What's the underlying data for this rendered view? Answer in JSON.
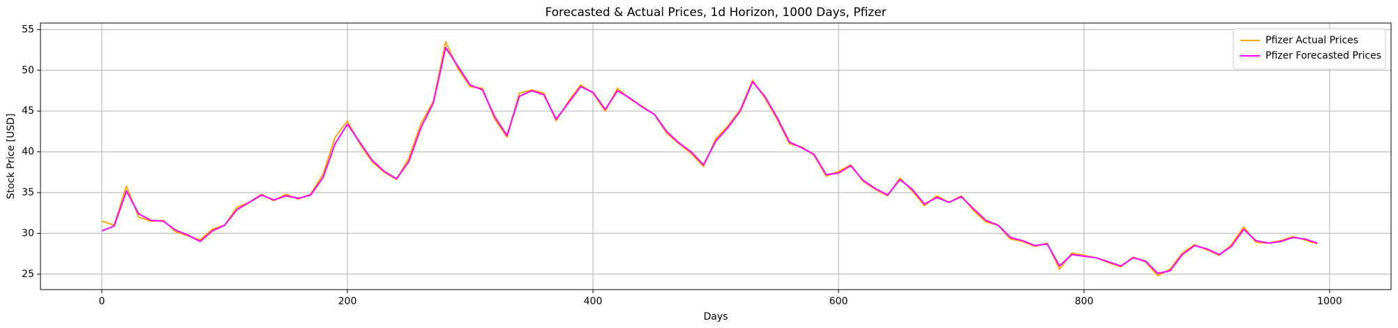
{
  "chart_data": {
    "type": "line",
    "title": "Forecasted & Actual Prices, 1d Horizon, 1000 Days, Pfizer",
    "x_label": "Days",
    "y_label": "Stock Price [USD]",
    "x": [
      0,
      10,
      20,
      30,
      40,
      50,
      60,
      70,
      80,
      90,
      100,
      110,
      120,
      130,
      140,
      150,
      160,
      170,
      180,
      190,
      200,
      210,
      220,
      230,
      240,
      250,
      260,
      270,
      280,
      290,
      300,
      310,
      320,
      330,
      340,
      350,
      360,
      370,
      380,
      390,
      400,
      410,
      420,
      430,
      440,
      450,
      460,
      470,
      480,
      490,
      500,
      510,
      520,
      530,
      540,
      550,
      560,
      570,
      580,
      590,
      600,
      610,
      620,
      630,
      640,
      650,
      660,
      670,
      680,
      690,
      700,
      710,
      720,
      730,
      740,
      750,
      760,
      770,
      780,
      790,
      800,
      810,
      820,
      830,
      840,
      850,
      860,
      870,
      880,
      890,
      900,
      910,
      920,
      930,
      940,
      950,
      960,
      970,
      980,
      990
    ],
    "series": [
      {
        "name": "Pfizer Actual Prices",
        "color": "#ffa500",
        "values": [
          31.5,
          31.0,
          35.8,
          32.0,
          31.5,
          31.6,
          30.2,
          29.7,
          29.2,
          30.5,
          31.0,
          33.2,
          33.8,
          34.8,
          34.0,
          34.8,
          34.2,
          34.8,
          37.2,
          41.8,
          43.8,
          41.0,
          38.8,
          37.5,
          36.6,
          39.2,
          43.5,
          46.2,
          53.5,
          50.2,
          48.0,
          47.8,
          44.0,
          41.8,
          47.2,
          47.6,
          47.2,
          43.8,
          46.2,
          48.2,
          47.2,
          45.0,
          47.8,
          46.5,
          45.6,
          44.6,
          42.3,
          41.0,
          39.8,
          38.2,
          41.6,
          43.2,
          45.2,
          48.8,
          46.6,
          44.0,
          41.0,
          40.6,
          39.6,
          37.0,
          37.6,
          38.4,
          36.4,
          35.4,
          34.6,
          36.8,
          35.2,
          33.4,
          34.6,
          33.8,
          34.6,
          32.8,
          31.4,
          31.0,
          29.3,
          29.0,
          28.4,
          28.8,
          25.6,
          27.6,
          27.3,
          27.0,
          26.4,
          25.9,
          27.1,
          26.5,
          24.8,
          25.6,
          27.6,
          28.6,
          28.0,
          27.3,
          28.6,
          30.8,
          28.9,
          28.8,
          29.1,
          29.6,
          29.2,
          28.7
        ]
      },
      {
        "name": "Pfizer Forecasted Prices",
        "color": "#ff00ff",
        "values": [
          30.3,
          30.9,
          35.2,
          32.4,
          31.6,
          31.5,
          30.4,
          29.8,
          29.0,
          30.3,
          31.0,
          32.9,
          33.8,
          34.7,
          34.1,
          34.6,
          34.3,
          34.7,
          36.8,
          41.0,
          43.4,
          41.2,
          39.0,
          37.6,
          36.7,
          38.8,
          43.0,
          46.0,
          52.8,
          50.5,
          48.2,
          47.6,
          44.3,
          42.0,
          46.8,
          47.5,
          47.0,
          44.0,
          46.0,
          48.0,
          47.3,
          45.2,
          47.5,
          46.6,
          45.5,
          44.6,
          42.5,
          41.1,
          40.0,
          38.4,
          41.3,
          43.0,
          45.0,
          48.6,
          46.8,
          44.2,
          41.2,
          40.5,
          39.7,
          37.2,
          37.4,
          38.3,
          36.5,
          35.5,
          34.7,
          36.6,
          35.4,
          33.6,
          34.4,
          33.8,
          34.5,
          33.0,
          31.6,
          31.0,
          29.5,
          29.1,
          28.5,
          28.7,
          26.0,
          27.4,
          27.2,
          27.0,
          26.5,
          26.0,
          27.0,
          26.6,
          25.1,
          25.4,
          27.4,
          28.5,
          28.1,
          27.4,
          28.4,
          30.5,
          29.1,
          28.8,
          29.0,
          29.5,
          29.3,
          28.8
        ]
      }
    ],
    "xlim": [
      -50,
      1050
    ],
    "ylim": [
      23.1,
      55.8
    ],
    "xticks": [
      0,
      200,
      400,
      600,
      800,
      1000
    ],
    "yticks": [
      25,
      30,
      35,
      40,
      45,
      50,
      55
    ],
    "grid": true,
    "legend": "upper right"
  }
}
